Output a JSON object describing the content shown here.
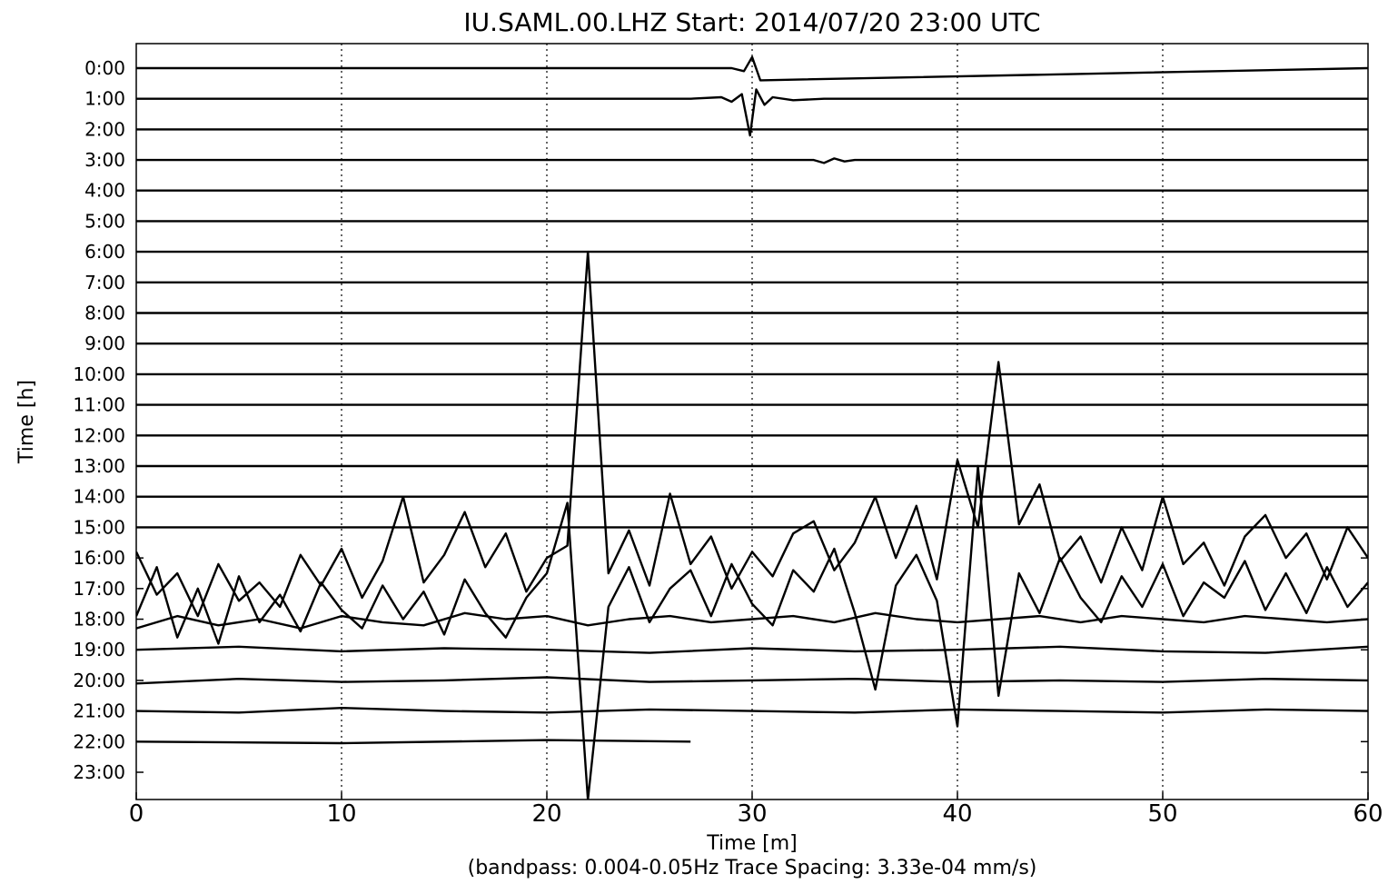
{
  "chart_data": {
    "type": "helicorder",
    "title": "IU.SAML.00.LHZ  Start: 2014/07/20 23:00 UTC",
    "xlabel": "Time [m]",
    "subtitle": "(bandpass: 0.004-0.05Hz  Trace Spacing: 3.33e-04 mm/s)",
    "ylabel": "Time [h]",
    "color": "#000000",
    "grid": true,
    "xlim": [
      0,
      60
    ],
    "xticks": [
      0,
      10,
      20,
      30,
      40,
      50,
      60
    ],
    "ylim": [
      -0.8,
      23.89
    ],
    "y_inverted": true,
    "yticks": [
      {
        "value": 0,
        "label": "0:00"
      },
      {
        "value": 1,
        "label": "1:00"
      },
      {
        "value": 2,
        "label": "2:00"
      },
      {
        "value": 3,
        "label": "3:00"
      },
      {
        "value": 4,
        "label": "4:00"
      },
      {
        "value": 5,
        "label": "5:00"
      },
      {
        "value": 6,
        "label": "6:00"
      },
      {
        "value": 7,
        "label": "7:00"
      },
      {
        "value": 8,
        "label": "8:00"
      },
      {
        "value": 9,
        "label": "9:00"
      },
      {
        "value": 10,
        "label": "10:00"
      },
      {
        "value": 11,
        "label": "11:00"
      },
      {
        "value": 12,
        "label": "12:00"
      },
      {
        "value": 13,
        "label": "13:00"
      },
      {
        "value": 14,
        "label": "14:00"
      },
      {
        "value": 15,
        "label": "15:00"
      },
      {
        "value": 16,
        "label": "16:00"
      },
      {
        "value": 17,
        "label": "17:00"
      },
      {
        "value": 18,
        "label": "18:00"
      },
      {
        "value": 19,
        "label": "19:00"
      },
      {
        "value": 20,
        "label": "20:00"
      },
      {
        "value": 21,
        "label": "21:00"
      },
      {
        "value": 22,
        "label": "22:00"
      },
      {
        "value": 23,
        "label": "23:00"
      }
    ],
    "series": [
      {
        "x": [
          0,
          29,
          29.6,
          30,
          30.4,
          60
        ],
        "values": [
          0,
          0,
          0.1,
          -0.36,
          0.4,
          0
        ]
      },
      {
        "x": [
          0,
          27,
          28.5,
          29,
          29.5,
          29.9,
          30.2,
          30.6,
          31,
          32,
          33.5,
          60
        ],
        "values": [
          1,
          1,
          0.95,
          1.1,
          0.85,
          2.2,
          0.7,
          1.2,
          0.95,
          1.05,
          1,
          1
        ]
      },
      {
        "x": [
          0,
          60
        ],
        "values": [
          2,
          2
        ]
      },
      {
        "x": [
          0,
          33,
          33.5,
          34,
          34.5,
          35,
          60
        ],
        "values": [
          3,
          3,
          3.1,
          2.95,
          3.05,
          3,
          3
        ]
      },
      {
        "x": [
          0,
          60
        ],
        "values": [
          4,
          4
        ]
      },
      {
        "x": [
          0,
          60
        ],
        "values": [
          5,
          5
        ]
      },
      {
        "x": [
          0,
          60
        ],
        "values": [
          6,
          6
        ]
      },
      {
        "x": [
          0,
          60
        ],
        "values": [
          7,
          7
        ]
      },
      {
        "x": [
          0,
          60
        ],
        "values": [
          8,
          8
        ]
      },
      {
        "x": [
          0,
          60
        ],
        "values": [
          9,
          9
        ]
      },
      {
        "x": [
          0,
          60
        ],
        "values": [
          10,
          10
        ]
      },
      {
        "x": [
          0,
          60
        ],
        "values": [
          11,
          11
        ]
      },
      {
        "x": [
          0,
          60
        ],
        "values": [
          12,
          12
        ]
      },
      {
        "x": [
          0,
          60
        ],
        "values": [
          13,
          13
        ]
      },
      {
        "x": [
          0,
          60
        ],
        "values": [
          14,
          14
        ]
      },
      {
        "x": [
          0,
          60
        ],
        "values": [
          15,
          15
        ]
      },
      {
        "x": [
          0,
          1,
          2,
          3,
          4,
          5,
          6,
          7,
          8,
          9,
          10,
          11,
          12,
          13,
          14,
          15,
          16,
          17,
          18,
          19,
          20,
          21,
          22,
          23,
          24,
          25,
          26,
          27,
          28,
          29,
          30,
          31,
          32,
          33,
          34,
          35,
          36,
          37,
          38,
          39,
          40,
          41,
          42,
          43,
          44,
          45,
          46,
          47,
          48,
          49,
          50,
          51,
          52,
          53,
          54,
          55,
          56,
          57,
          58,
          59,
          60
        ],
        "values": [
          15.8,
          17.2,
          16.5,
          17.9,
          16.2,
          17.4,
          16.8,
          17.6,
          15.9,
          16.9,
          15.7,
          17.3,
          16.1,
          14.0,
          16.8,
          15.9,
          14.5,
          16.3,
          15.2,
          17.1,
          16.0,
          15.6,
          6.0,
          16.5,
          15.1,
          16.9,
          13.9,
          16.2,
          15.3,
          17.0,
          15.8,
          16.6,
          15.2,
          14.8,
          16.4,
          15.5,
          14.0,
          16.0,
          14.3,
          16.7,
          12.8,
          15.0,
          9.6,
          14.9,
          13.6,
          16.1,
          15.3,
          16.8,
          15.0,
          16.4,
          14.0,
          16.2,
          15.5,
          16.9,
          15.3,
          14.6,
          16.0,
          15.2,
          16.7,
          15.0,
          16.0
        ]
      },
      {
        "x": [
          0,
          1,
          2,
          3,
          4,
          5,
          6,
          7,
          8,
          9,
          10,
          11,
          12,
          13,
          14,
          15,
          16,
          17,
          18,
          19,
          20,
          21,
          22,
          23,
          24,
          25,
          26,
          27,
          28,
          29,
          30,
          31,
          32,
          33,
          34,
          35,
          36,
          37,
          38,
          39,
          40,
          41,
          42,
          43,
          44,
          45,
          46,
          47,
          48,
          49,
          50,
          51,
          52,
          53,
          54,
          55,
          56,
          57,
          58,
          59,
          60
        ],
        "values": [
          17.9,
          16.3,
          18.6,
          17.0,
          18.8,
          16.6,
          18.1,
          17.2,
          18.4,
          16.8,
          17.7,
          18.3,
          16.9,
          18.0,
          17.1,
          18.5,
          16.7,
          17.8,
          18.6,
          17.3,
          16.5,
          14.2,
          23.9,
          17.6,
          16.3,
          18.1,
          17.0,
          16.4,
          17.9,
          16.2,
          17.5,
          18.2,
          16.4,
          17.1,
          15.7,
          17.8,
          20.3,
          16.9,
          15.9,
          17.4,
          21.5,
          13.0,
          20.5,
          16.5,
          17.8,
          16.0,
          17.3,
          18.1,
          16.6,
          17.6,
          16.2,
          17.9,
          16.8,
          17.3,
          16.1,
          17.7,
          16.5,
          17.8,
          16.3,
          17.6,
          16.8
        ]
      },
      {
        "x": [
          0,
          2,
          4,
          6,
          8,
          10,
          12,
          14,
          16,
          18,
          20,
          22,
          24,
          26,
          28,
          30,
          32,
          34,
          36,
          38,
          40,
          42,
          44,
          46,
          48,
          50,
          52,
          54,
          56,
          58,
          60
        ],
        "values": [
          18.3,
          17.9,
          18.2,
          18.0,
          18.3,
          17.9,
          18.1,
          18.2,
          17.8,
          18.0,
          17.9,
          18.2,
          18.0,
          17.9,
          18.1,
          18.0,
          17.9,
          18.1,
          17.8,
          18.0,
          18.1,
          18.0,
          17.9,
          18.1,
          17.9,
          18.0,
          18.1,
          17.9,
          18.0,
          18.1,
          18.0
        ]
      },
      {
        "x": [
          0,
          5,
          10,
          15,
          20,
          25,
          30,
          35,
          40,
          45,
          50,
          55,
          60
        ],
        "values": [
          19.0,
          18.9,
          19.05,
          18.95,
          19.0,
          19.1,
          18.95,
          19.05,
          19.0,
          18.9,
          19.05,
          19.1,
          18.9
        ]
      },
      {
        "x": [
          0,
          5,
          10,
          15,
          20,
          25,
          30,
          35,
          40,
          45,
          50,
          55,
          60
        ],
        "values": [
          20.1,
          19.95,
          20.05,
          20.0,
          19.9,
          20.05,
          20.0,
          19.95,
          20.05,
          20.0,
          20.05,
          19.95,
          20.0
        ]
      },
      {
        "x": [
          0,
          5,
          10,
          15,
          20,
          25,
          30,
          35,
          40,
          45,
          50,
          55,
          60
        ],
        "values": [
          21.0,
          21.05,
          20.9,
          21.0,
          21.05,
          20.95,
          21.0,
          21.05,
          20.95,
          21.0,
          21.05,
          20.95,
          21.0
        ]
      },
      {
        "x": [
          0,
          10,
          20,
          27
        ],
        "values": [
          22,
          22.05,
          21.95,
          22
        ]
      }
    ]
  }
}
